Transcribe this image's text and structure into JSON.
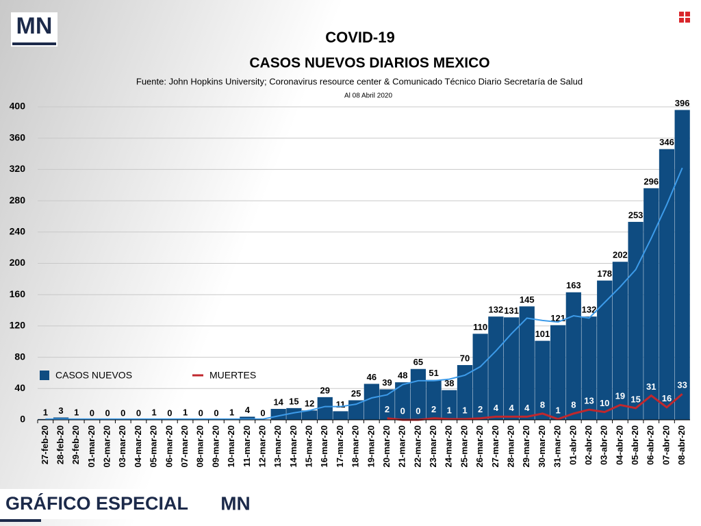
{
  "brand": "MN",
  "footer": "GRÁFICO ESPECIAL",
  "chart_data": {
    "type": "bar",
    "title": "COVID-19",
    "subtitle": "CASOS NUEVOS DIARIOS MEXICO",
    "source": "Fuente: John Hopkins University; Coronavirus resource center & Comunicado Técnico Diario Secretaría de Salud",
    "note": "Al 08 Abril 2020",
    "categories": [
      "27-feb-20",
      "28-feb-20",
      "29-feb-20",
      "01-mar-20",
      "02-mar-20",
      "03-mar-20",
      "04-mar-20",
      "05-mar-20",
      "06-mar-20",
      "07-mar-20",
      "08-mar-20",
      "09-mar-20",
      "10-mar-20",
      "11-mar-20",
      "12-mar-20",
      "13-mar-20",
      "14-mar-20",
      "15-mar-20",
      "16-mar-20",
      "17-mar-20",
      "18-mar-20",
      "19-mar-20",
      "20-mar-20",
      "21-mar-20",
      "22-mar-20",
      "23-mar-20",
      "24-mar-20",
      "25-mar-20",
      "26-mar-20",
      "27-mar-20",
      "28-mar-20",
      "29-mar-20",
      "30-mar-20",
      "31-mar-20",
      "01-abr-20",
      "02-abr-20",
      "03-abr-20",
      "04-abr-20",
      "05-abr-20",
      "06-abr-20",
      "07-abr-20",
      "08-abr-20"
    ],
    "series": [
      {
        "name": "CASOS NUEVOS",
        "type": "bar",
        "color": "#0f4c81",
        "values": [
          1,
          3,
          1,
          0,
          0,
          0,
          0,
          1,
          0,
          1,
          0,
          0,
          1,
          4,
          0,
          14,
          15,
          12,
          29,
          11,
          25,
          46,
          39,
          48,
          65,
          51,
          38,
          70,
          110,
          132,
          131,
          145,
          101,
          121,
          163,
          132,
          178,
          202,
          253,
          296,
          346,
          396
        ]
      },
      {
        "name": "MUERTES",
        "type": "line",
        "color": "#c0282d",
        "values": [
          null,
          null,
          null,
          null,
          null,
          null,
          null,
          null,
          null,
          null,
          null,
          null,
          null,
          null,
          null,
          null,
          null,
          null,
          null,
          null,
          null,
          null,
          2,
          0,
          0,
          2,
          1,
          1,
          2,
          4,
          4,
          4,
          8,
          1,
          8,
          13,
          10,
          19,
          15,
          31,
          16,
          33
        ]
      },
      {
        "type": "line",
        "color": "#3d9be9",
        "values": [
          1,
          1,
          1,
          1,
          1,
          1,
          1,
          1,
          1,
          1,
          1,
          1,
          1,
          1,
          1,
          5,
          9,
          12,
          17,
          17,
          20,
          28,
          32,
          45,
          50,
          50,
          52,
          57,
          68,
          88,
          110,
          130,
          127,
          125,
          133,
          130,
          150,
          170,
          192,
          232,
          275,
          322
        ]
      }
    ],
    "ylim": [
      0,
      400
    ],
    "yticks": [
      0,
      40,
      80,
      120,
      160,
      200,
      240,
      280,
      320,
      360,
      400
    ],
    "grid": true
  }
}
